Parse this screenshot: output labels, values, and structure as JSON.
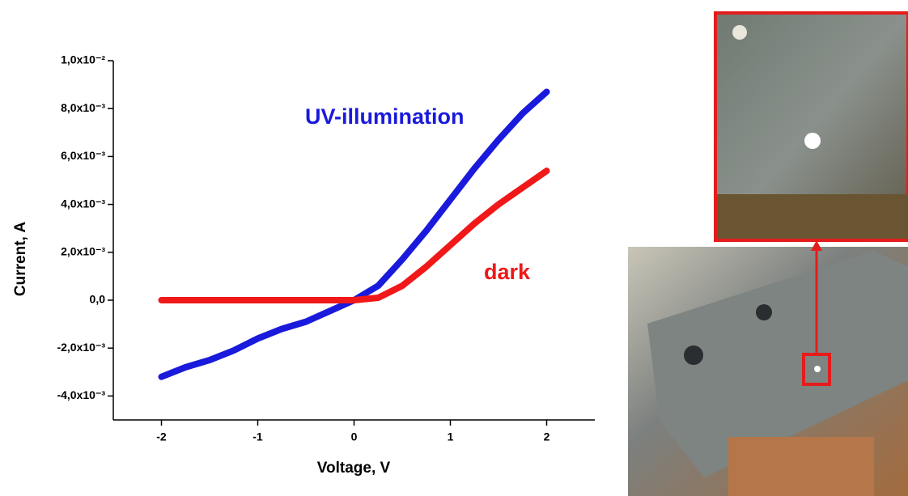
{
  "chart_data": {
    "type": "line",
    "x_label": "Voltage, V",
    "y_label": "Current, A",
    "x": [
      -2,
      -1.75,
      -1.5,
      -1.25,
      -1,
      -0.75,
      -0.5,
      -0.25,
      0,
      0.25,
      0.5,
      0.75,
      1,
      1.25,
      1.5,
      1.75,
      2
    ],
    "series": [
      {
        "name": "UV-illumination",
        "color": "#1a1adc",
        "values": [
          -0.0032,
          -0.0028,
          -0.0025,
          -0.0021,
          -0.0016,
          -0.0012,
          -0.0009,
          -0.00045,
          0,
          0.0006,
          0.0017,
          0.0029,
          0.0042,
          0.0055,
          0.0067,
          0.0078,
          0.0087
        ]
      },
      {
        "name": "dark",
        "color": "#f01818",
        "values": [
          0,
          0,
          0,
          0,
          0,
          0,
          0,
          0,
          0,
          0.0001,
          0.0006,
          0.0014,
          0.0023,
          0.0032,
          0.004,
          0.0047,
          0.0054
        ]
      }
    ],
    "xlim": [
      -2.5,
      2.5
    ],
    "xticks": [
      -2,
      -1,
      0,
      1,
      2
    ],
    "ylim": [
      -0.005,
      0.01
    ],
    "yticks": [
      {
        "value": -0.004,
        "label": "-4,0x10⁻³"
      },
      {
        "value": -0.002,
        "label": "-2,0x10⁻³"
      },
      {
        "value": 0,
        "label": "0,0"
      },
      {
        "value": 0.002,
        "label": "2,0x10⁻³"
      },
      {
        "value": 0.004,
        "label": "4,0x10⁻³"
      },
      {
        "value": 0.006,
        "label": "6,0x10⁻³"
      },
      {
        "value": 0.008,
        "label": "8,0x10⁻³"
      },
      {
        "value": 0.01,
        "label": "1,0x10⁻²"
      }
    ],
    "grid": false
  }
}
